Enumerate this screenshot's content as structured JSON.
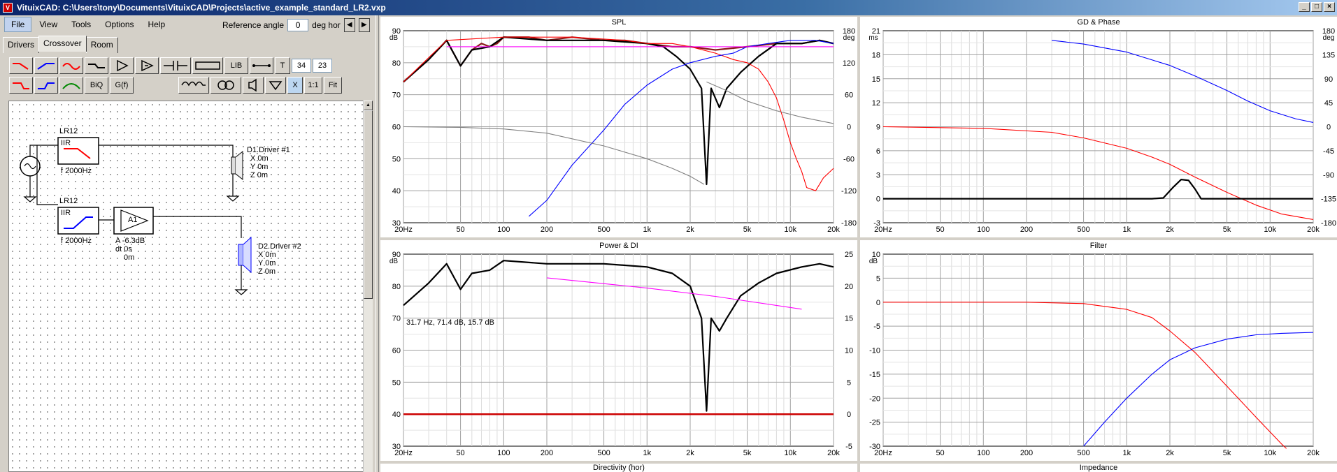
{
  "window": {
    "title": "VituixCAD: C:\\Users\\tony\\Documents\\VituixCAD\\Projects\\active_example_standard_LR2.vxp",
    "app_icon": "V",
    "buttons": [
      "_",
      "□",
      "×"
    ]
  },
  "menu": [
    "File",
    "View",
    "Tools",
    "Options",
    "Help"
  ],
  "reference": {
    "label": "Reference angle",
    "value": "0",
    "unit": "deg hor",
    "prev_icon": "◀",
    "next_icon": "▶"
  },
  "tabs": [
    "Drivers",
    "Crossover",
    "Room"
  ],
  "active_tab": "Crossover",
  "toolbar": {
    "lib": "LIB",
    "t": "T",
    "num1": "34",
    "num2": "23",
    "biq": "BiQ",
    "gf": "G(f)",
    "x": "X",
    "one_to_one": "1:1",
    "fit": "Fit"
  },
  "schematic": {
    "lr12_top": "LR12",
    "iir_top": "IIR",
    "freq_top": "f  2000Hz",
    "lr12_bot": "LR12",
    "iir_bot": "IIR",
    "freq_bot": "f  2000Hz",
    "amp_name": "A1",
    "amp_a": "A  -6.3dB",
    "amp_dt": "dt 0s",
    "amp_d": "0m",
    "d1_name": "D1.Driver #1",
    "d1_x": "X 0m",
    "d1_y": "Y 0m",
    "d1_z": "Z 0m",
    "d2_name": "D2.Driver #2",
    "d2_x": "X 0m",
    "d2_y": "Y 0m",
    "d2_z": "Z 0m"
  },
  "colors": {
    "red": "#ff0000",
    "blue": "#0000ff",
    "magenta": "#ff00ff",
    "grey": "#808080",
    "black": "#000000",
    "brown": "#8b1a1a"
  },
  "x_ticks": [
    "20Hz",
    "50",
    "100",
    "200",
    "500",
    "1k",
    "2k",
    "5k",
    "10k",
    "20k"
  ],
  "graphs": {
    "spl": {
      "title": "SPL",
      "unit_left": "dB",
      "unit_right": "deg",
      "y_left": [
        "90",
        "80",
        "70",
        "60",
        "50",
        "40",
        "30"
      ],
      "y_right": [
        "180",
        "120",
        "60",
        "0",
        "-60",
        "-120",
        "-180"
      ]
    },
    "gd": {
      "title": "GD & Phase",
      "unit_left": "ms",
      "unit_right": "deg",
      "y_left": [
        "21",
        "18",
        "15",
        "12",
        "9",
        "6",
        "3",
        "0",
        "-3"
      ],
      "y_right": [
        "180",
        "135",
        "90",
        "45",
        "0",
        "-45",
        "-90",
        "-135",
        "-180"
      ]
    },
    "power": {
      "title": "Power & DI",
      "unit_left": "dB",
      "y_left": [
        "90",
        "80",
        "70",
        "60",
        "50",
        "40",
        "30"
      ],
      "y_right": [
        "25",
        "20",
        "15",
        "10",
        "5",
        "0",
        "-5"
      ],
      "readout": "31.7 Hz, 71.4 dB, 15.7 dB"
    },
    "filter": {
      "title": "Filter",
      "unit_left": "dB",
      "y_left": [
        "10",
        "5",
        "0",
        "-5",
        "-10",
        "-15",
        "-20",
        "-25",
        "-30"
      ]
    }
  },
  "bottom_titles": [
    "Directivity (hor)",
    "Impedance"
  ],
  "chart_data": [
    {
      "type": "line",
      "title": "SPL",
      "xlim": [
        20,
        20000
      ],
      "ylim": [
        30,
        90
      ],
      "y2lim": [
        -180,
        180
      ],
      "series": [
        {
          "color": "#8b1a1a",
          "axis": "left",
          "points": [
            [
              20,
              74
            ],
            [
              30,
              81
            ],
            [
              40,
              87
            ],
            [
              50,
              79
            ],
            [
              60,
              84
            ],
            [
              70,
              86
            ],
            [
              80,
              85
            ],
            [
              90,
              86
            ],
            [
              100,
              88
            ],
            [
              150,
              88
            ],
            [
              200,
              87
            ],
            [
              300,
              88
            ],
            [
              500,
              87
            ],
            [
              700,
              87
            ],
            [
              1000,
              86
            ],
            [
              1500,
              85
            ],
            [
              2000,
              85
            ],
            [
              3000,
              84
            ],
            [
              5000,
              85
            ],
            [
              8000,
              86
            ],
            [
              12000,
              86
            ],
            [
              16000,
              87
            ],
            [
              20000,
              86
            ]
          ]
        },
        {
          "color": "#000000",
          "axis": "left",
          "points": [
            [
              20,
              74
            ],
            [
              30,
              81
            ],
            [
              40,
              87
            ],
            [
              50,
              79
            ],
            [
              60,
              84
            ],
            [
              80,
              85
            ],
            [
              100,
              88
            ],
            [
              200,
              87
            ],
            [
              500,
              87
            ],
            [
              1000,
              86
            ],
            [
              1300,
              85
            ],
            [
              1600,
              82
            ],
            [
              2000,
              78
            ],
            [
              2400,
              72
            ],
            [
              2600,
              42
            ],
            [
              2800,
              72
            ],
            [
              3200,
              66
            ],
            [
              3600,
              72
            ],
            [
              4500,
              77
            ],
            [
              6000,
              82
            ],
            [
              8000,
              86
            ],
            [
              12000,
              86
            ],
            [
              16000,
              87
            ],
            [
              20000,
              86
            ]
          ]
        },
        {
          "color": "#ff0000",
          "axis": "left",
          "points": [
            [
              20,
              74
            ],
            [
              40,
              87
            ],
            [
              100,
              88
            ],
            [
              300,
              88
            ],
            [
              700,
              87
            ],
            [
              1000,
              86
            ],
            [
              1500,
              86
            ],
            [
              2000,
              85
            ],
            [
              3000,
              83
            ],
            [
              4000,
              81
            ],
            [
              5000,
              80
            ],
            [
              6000,
              78
            ],
            [
              7000,
              74
            ],
            [
              8000,
              69
            ],
            [
              9000,
              62
            ],
            [
              10000,
              55
            ],
            [
              11000,
              50
            ],
            [
              12000,
              46
            ],
            [
              13000,
              41
            ],
            [
              15000,
              40
            ],
            [
              17000,
              44
            ],
            [
              20000,
              47
            ]
          ]
        },
        {
          "color": "#0000ff",
          "axis": "left",
          "points": [
            [
              150,
              32
            ],
            [
              200,
              37
            ],
            [
              300,
              48
            ],
            [
              500,
              59
            ],
            [
              700,
              67
            ],
            [
              1000,
              73
            ],
            [
              1500,
              78
            ],
            [
              2000,
              80
            ],
            [
              3000,
              82
            ],
            [
              4000,
              83
            ],
            [
              5000,
              85
            ],
            [
              7000,
              86
            ],
            [
              10000,
              87
            ],
            [
              15000,
              87
            ],
            [
              20000,
              86
            ]
          ]
        },
        {
          "color": "#808080",
          "axis": "left",
          "points": [
            [
              20,
              60
            ],
            [
              50,
              59.8
            ],
            [
              100,
              59.3
            ],
            [
              200,
              58
            ],
            [
              500,
              54
            ],
            [
              1000,
              50
            ],
            [
              1500,
              47
            ],
            [
              2000,
              44.5
            ],
            [
              2500,
              42
            ]
          ]
        },
        {
          "color": "#808080",
          "axis": "left",
          "points": [
            [
              2600,
              74
            ],
            [
              3500,
              71.5
            ],
            [
              5000,
              68
            ],
            [
              8000,
              65
            ],
            [
              12000,
              63
            ],
            [
              20000,
              61
            ]
          ]
        },
        {
          "color": "#ff00ff",
          "axis": "left",
          "points": [
            [
              40,
              85
            ],
            [
              20000,
              85
            ]
          ]
        }
      ]
    },
    {
      "type": "line",
      "title": "GD & Phase",
      "xlim": [
        20,
        20000
      ],
      "ylim": [
        -3,
        21
      ],
      "y2lim": [
        -180,
        180
      ],
      "series": [
        {
          "color": "#0000ff",
          "axis": "right",
          "points": [
            [
              300,
              162
            ],
            [
              500,
              155
            ],
            [
              1000,
              140
            ],
            [
              2000,
              115
            ],
            [
              3000,
              95
            ],
            [
              5000,
              68
            ],
            [
              7000,
              48
            ],
            [
              10000,
              30
            ],
            [
              15000,
              15
            ],
            [
              20000,
              8
            ]
          ]
        },
        {
          "color": "#ff0000",
          "axis": "left",
          "points": [
            [
              20,
              9
            ],
            [
              100,
              8.8
            ],
            [
              300,
              8.3
            ],
            [
              500,
              7.6
            ],
            [
              1000,
              6.3
            ],
            [
              1500,
              5.2
            ],
            [
              2000,
              4.3
            ],
            [
              3000,
              2.7
            ],
            [
              5000,
              0.8
            ],
            [
              8000,
              -0.8
            ],
            [
              12000,
              -1.9
            ],
            [
              20000,
              -2.6
            ]
          ]
        },
        {
          "color": "#000000",
          "axis": "left",
          "points": [
            [
              20,
              0
            ],
            [
              1500,
              0
            ],
            [
              1800,
              0.1
            ],
            [
              2100,
              1.4
            ],
            [
              2400,
              2.4
            ],
            [
              2700,
              2.3
            ],
            [
              3000,
              1.2
            ],
            [
              3300,
              0
            ],
            [
              20000,
              0
            ]
          ]
        }
      ]
    },
    {
      "type": "line",
      "title": "Power & DI",
      "xlim": [
        20,
        20000
      ],
      "ylim": [
        30,
        90
      ],
      "y2lim": [
        -5,
        25
      ],
      "series": [
        {
          "color": "#000000",
          "axis": "left",
          "points": [
            [
              20,
              74
            ],
            [
              30,
              81
            ],
            [
              40,
              87
            ],
            [
              50,
              79
            ],
            [
              60,
              84
            ],
            [
              80,
              85
            ],
            [
              100,
              88
            ],
            [
              200,
              87
            ],
            [
              500,
              87
            ],
            [
              1000,
              86
            ],
            [
              1500,
              84
            ],
            [
              2000,
              80
            ],
            [
              2400,
              70
            ],
            [
              2600,
              41
            ],
            [
              2800,
              70
            ],
            [
              3200,
              66
            ],
            [
              3600,
              70
            ],
            [
              4500,
              77
            ],
            [
              6000,
              81
            ],
            [
              8000,
              84
            ],
            [
              12000,
              86
            ],
            [
              16000,
              87
            ],
            [
              20000,
              86
            ]
          ]
        },
        {
          "color": "#ff00ff",
          "axis": "right",
          "points": [
            [
              200,
              21.3
            ],
            [
              1000,
              19.7
            ],
            [
              3000,
              18.4
            ],
            [
              12000,
              16.4
            ]
          ]
        },
        {
          "color": "#cc0000",
          "axis": "right",
          "points": [
            [
              20,
              0
            ],
            [
              20000,
              0
            ]
          ]
        }
      ]
    },
    {
      "type": "line",
      "title": "Filter",
      "xlim": [
        20,
        20000
      ],
      "ylim": [
        -30,
        10
      ],
      "series": [
        {
          "color": "#ff0000",
          "axis": "left",
          "points": [
            [
              20,
              0
            ],
            [
              200,
              0
            ],
            [
              500,
              -0.3
            ],
            [
              1000,
              -1.5
            ],
            [
              1500,
              -3.2
            ],
            [
              2000,
              -6
            ],
            [
              3000,
              -10.5
            ],
            [
              5000,
              -17.5
            ],
            [
              8000,
              -24
            ],
            [
              12000,
              -29.5
            ],
            [
              13000,
              -30.5
            ]
          ]
        },
        {
          "color": "#0000ff",
          "axis": "left",
          "points": [
            [
              500,
              -30
            ],
            [
              700,
              -25
            ],
            [
              1000,
              -20
            ],
            [
              1500,
              -15
            ],
            [
              2000,
              -12
            ],
            [
              3000,
              -9.5
            ],
            [
              5000,
              -7.7
            ],
            [
              8000,
              -6.8
            ],
            [
              12000,
              -6.5
            ],
            [
              20000,
              -6.3
            ]
          ]
        }
      ]
    }
  ]
}
